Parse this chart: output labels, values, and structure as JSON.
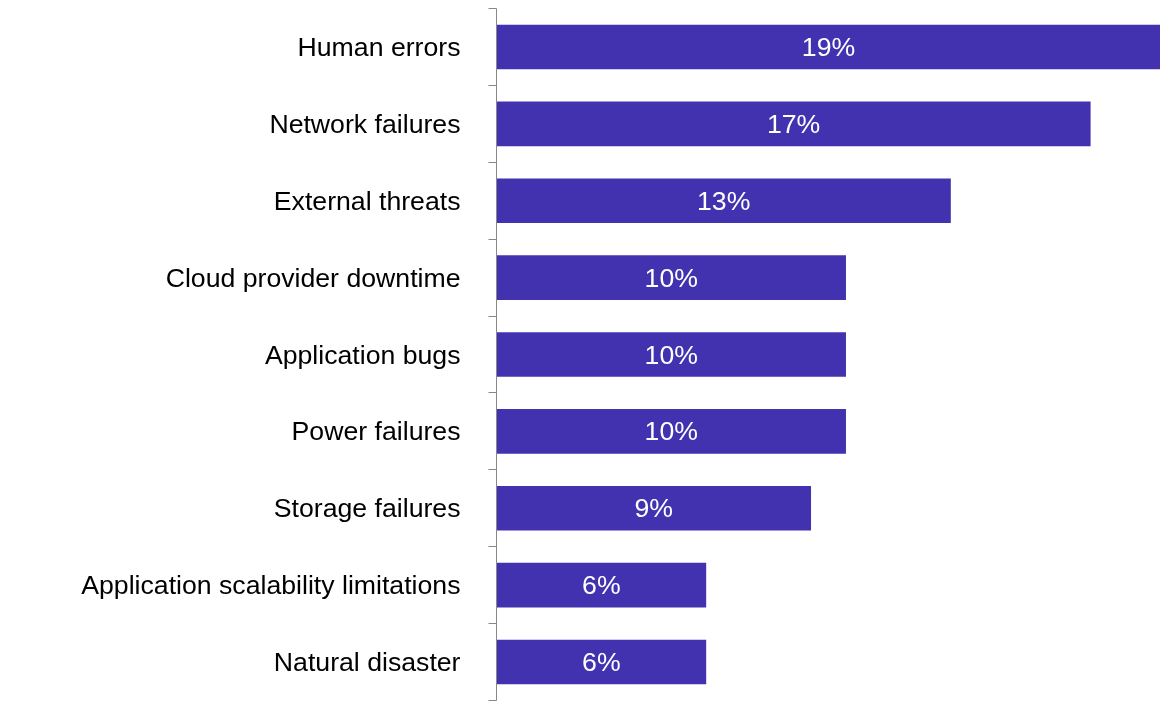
{
  "chart_data": {
    "type": "bar",
    "orientation": "horizontal",
    "categories": [
      "Human errors",
      "Network failures",
      "External threats",
      "Cloud provider downtime",
      "Application bugs",
      "Power failures",
      "Storage failures",
      "Application scalability limitations",
      "Natural disaster"
    ],
    "values": [
      19,
      17,
      13,
      10,
      10,
      10,
      9,
      6,
      6
    ],
    "value_labels": [
      "19%",
      "17%",
      "13%",
      "10%",
      "10%",
      "10%",
      "9%",
      "6%",
      "6%"
    ],
    "color": "#4332b0",
    "xlim": [
      0,
      19
    ],
    "tick_labels": "y",
    "grid": false
  }
}
